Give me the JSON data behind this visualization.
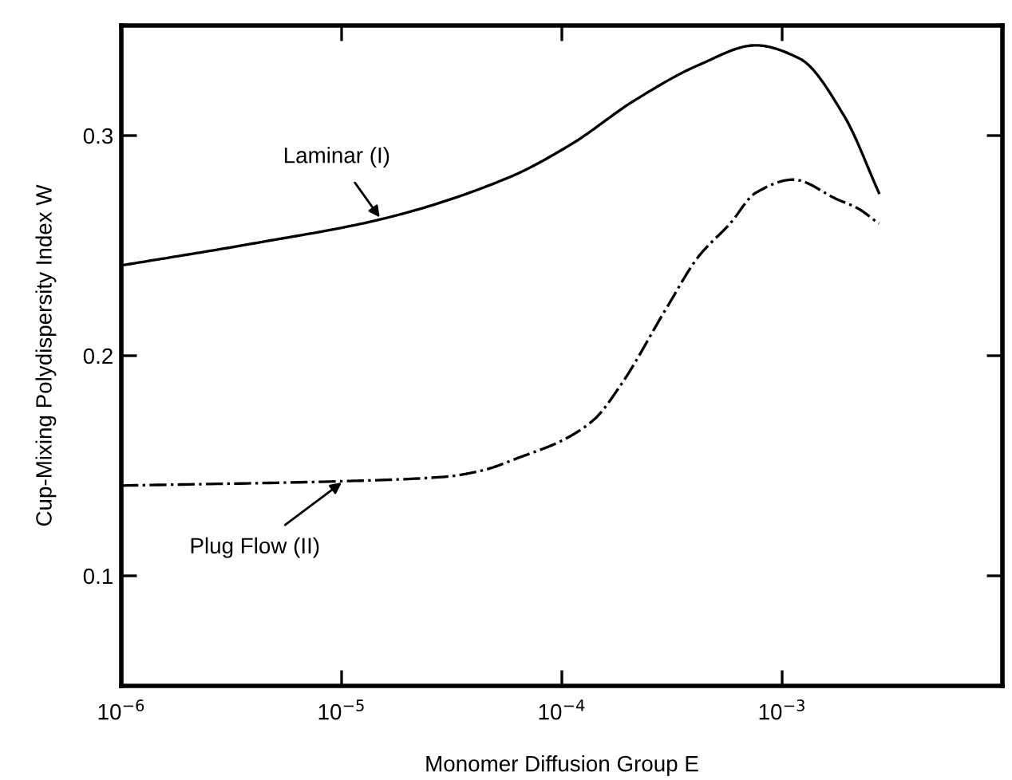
{
  "chart_data": {
    "type": "line",
    "xlabel": "Monomer Diffusion Group E",
    "ylabel": "Cup-Mixing Polydispersity Index W",
    "log": "x",
    "xlim": [
      1e-06,
      0.01
    ],
    "xticks": [
      {
        "value": 1e-06,
        "label": "10$^{−6}$"
      },
      {
        "value": 1e-05,
        "label": "10$^{−5}$"
      },
      {
        "value": 0.0001,
        "label": "10$^{−4}$"
      },
      {
        "value": 0.001,
        "label": "10$^{−3}$"
      }
    ],
    "ylim": [
      0.05,
      0.35
    ],
    "yticks": [
      0.1,
      0.2,
      0.3
    ],
    "grid": false,
    "marker": "none",
    "series": [
      {
        "color": "#000000",
        "line_style": "solid",
        "x": [
          1e-06,
          3.98e-06,
          1.51e-05,
          5.75e-05,
          0.00011,
          0.000214,
          0.000417,
          0.000759,
          0.0012,
          0.00191,
          0.00275
        ],
        "values": [
          0.241,
          0.251,
          0.262,
          0.281,
          0.296,
          0.316,
          0.332,
          0.341,
          0.335,
          0.309,
          0.274
        ]
      },
      {
        "color": "#000000",
        "line_style": "dashdot",
        "x": [
          1e-06,
          1.02e-05,
          2.95e-05,
          4.4e-05,
          6.5e-05,
          9.8e-05,
          0.00014,
          0.000186,
          0.0003,
          0.000417,
          0.00058,
          0.000759,
          0.00112,
          0.00178,
          0.0022,
          0.00275
        ],
        "values": [
          0.141,
          0.143,
          0.145,
          0.148,
          0.154,
          0.161,
          0.171,
          0.187,
          0.222,
          0.245,
          0.26,
          0.274,
          0.28,
          0.271,
          0.267,
          0.26
        ]
      }
    ],
    "annotations": [
      {
        "text": "Laminar (I)",
        "x": 1.51e-05,
        "y": 0.262
      },
      {
        "text": "Plug Flow (II)",
        "x": 1.02e-05,
        "y": 0.143
      }
    ]
  }
}
